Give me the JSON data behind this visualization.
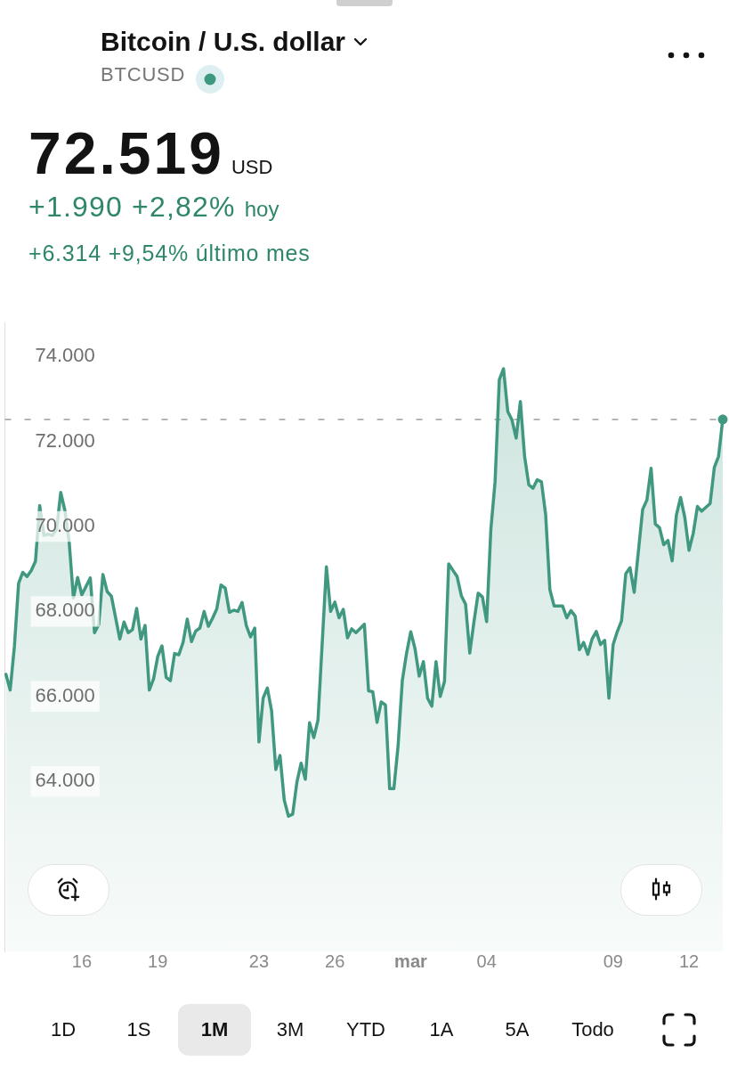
{
  "chart_data": {
    "type": "area",
    "title": "Bitcoin / U.S. dollar",
    "subtitle": "BTCUSD",
    "annotations": [
      "72.519",
      "USD",
      "+1.990 +2,82%",
      "hoy",
      "+6.314 +9,54% último mes",
      "1D",
      "1S",
      "1M",
      "3M",
      "YTD",
      "1A",
      "5A",
      "Todo"
    ],
    "xlim": [
      "--02-12T23:00",
      "--03-13T08:00"
    ],
    "xticks": [
      {
        "value": "--02-16",
        "label": "16"
      },
      {
        "value": "--02-19",
        "label": "19"
      },
      {
        "value": "--02-23",
        "label": "23"
      },
      {
        "value": "--02-26",
        "label": "26"
      },
      {
        "value": "--03-01",
        "label": "mar"
      },
      {
        "value": "--03-04",
        "label": "04"
      },
      {
        "value": "--03-09",
        "label": "09"
      },
      {
        "value": "--03-12",
        "label": "12"
      }
    ],
    "ylim": [
      60000,
      74800
    ],
    "yticks": [
      {
        "value": 64000,
        "label": "64.000"
      },
      {
        "value": 66000,
        "label": "66.000"
      },
      {
        "value": 68000,
        "label": "68.000"
      },
      {
        "value": 70000,
        "label": "70.000"
      },
      {
        "value": 72000,
        "label": "72.000"
      },
      {
        "value": 74000,
        "label": "74.000"
      }
    ],
    "ref_lines": [
      {
        "axis": "y",
        "value": 72519,
        "color": "#8a8a8a",
        "line_style": "dashed"
      }
    ],
    "series": [
      {
        "color": "#409880",
        "x": [
          "--02-13T00:00",
          "--02-13T04:00",
          "--02-13T08:00",
          "--02-13T12:00",
          "--02-13T16:00",
          "--02-13T20:00",
          "--02-14T00:00",
          "--02-14T04:00",
          "--02-14T08:00",
          "--02-14T12:00",
          "--02-14T16:00",
          "--02-14T20:00",
          "--02-15T00:00",
          "--02-15T04:00",
          "--02-15T08:00",
          "--02-15T12:00",
          "--02-15T16:00",
          "--02-15T20:00",
          "--02-16T00:00",
          "--02-16T08:00",
          "--02-16T12:00",
          "--02-16T16:00",
          "--02-16T20:00",
          "--02-17T00:00",
          "--02-17T04:00",
          "--02-17T12:00",
          "--02-17T16:00",
          "--02-17T20:00",
          "--02-18T00:00",
          "--02-18T04:00",
          "--02-18T08:00",
          "--02-18T12:00",
          "--02-18T16:00",
          "--02-18T20:00",
          "--02-19T00:00",
          "--02-19T04:00",
          "--02-19T08:00",
          "--02-19T12:00",
          "--02-19T16:00",
          "--02-19T20:00",
          "--02-20T00:00",
          "--02-20T04:00",
          "--02-20T08:00",
          "--02-20T12:00",
          "--02-20T16:00",
          "--02-20T20:00",
          "--02-21T00:00",
          "--02-21T04:00",
          "--02-21T08:00",
          "--02-21T12:00",
          "--02-21T16:00",
          "--02-21T20:00",
          "--02-22T00:00",
          "--02-22T04:00",
          "--02-22T08:00",
          "--02-22T12:00",
          "--02-22T16:00",
          "--02-22T20:00",
          "--02-23T00:00",
          "--02-23T04:00",
          "--02-23T08:00",
          "--02-23T12:00",
          "--02-23T16:00",
          "--02-23T20:00",
          "--02-24T00:00",
          "--02-24T04:00",
          "--02-24T08:00",
          "--02-24T12:00",
          "--02-24T16:00",
          "--02-24T20:00",
          "--02-25T00:00",
          "--02-25T04:00",
          "--02-25T08:00",
          "--02-25T16:00",
          "--02-25T20:00",
          "--02-26T00:00",
          "--02-26T04:00",
          "--02-26T08:00",
          "--02-26T12:00",
          "--02-26T16:00",
          "--02-26T20:00",
          "--02-27T04:00",
          "--02-27T08:00",
          "--02-27T12:00",
          "--02-27T16:00",
          "--02-27T20:00",
          "--02-28T00:00",
          "--02-28T04:00",
          "--02-28T08:00",
          "--02-28T12:00",
          "--02-28T16:00",
          "--02-28T20:00",
          "--03-01T00:00",
          "--03-01T04:00",
          "--03-01T08:00",
          "--03-01T12:00",
          "--03-01T16:00",
          "--03-01T20:00",
          "--03-02T00:00",
          "--03-02T04:00",
          "--03-02T08:00",
          "--03-02T12:00",
          "--03-02T16:00",
          "--03-02T20:00",
          "--03-03T00:00",
          "--03-03T04:00",
          "--03-03T08:00",
          "--03-03T12:00",
          "--03-03T16:00",
          "--03-03T20:00",
          "--03-04T00:00",
          "--03-04T04:00",
          "--03-04T08:00",
          "--03-04T12:00",
          "--03-04T16:00",
          "--03-04T20:00",
          "--03-05T00:00",
          "--03-05T04:00",
          "--03-05T08:00",
          "--03-05T12:00",
          "--03-05T16:00",
          "--03-05T20:00",
          "--03-06T00:00",
          "--03-06T04:00",
          "--03-06T08:00",
          "--03-06T12:00",
          "--03-06T16:00",
          "--03-07T00:00",
          "--03-07T04:00",
          "--03-07T08:00",
          "--03-07T12:00",
          "--03-07T16:00",
          "--03-07T20:00",
          "--03-08T00:00",
          "--03-08T04:00",
          "--03-08T08:00",
          "--03-08T12:00",
          "--03-08T16:00",
          "--03-08T20:00",
          "--03-09T00:00",
          "--03-09T04:00",
          "--03-09T08:00",
          "--03-09T12:00",
          "--03-09T16:00",
          "--03-09T20:00",
          "--03-10T04:00",
          "--03-10T08:00",
          "--03-10T12:00",
          "--03-10T16:00",
          "--03-10T20:00",
          "--03-11T00:00",
          "--03-11T04:00",
          "--03-11T08:00",
          "--03-11T12:00",
          "--03-11T16:00",
          "--03-11T20:00",
          "--03-12T00:00",
          "--03-12T04:00",
          "--03-12T08:00",
          "--03-12T12:00",
          "--03-12T20:00",
          "--03-13T00:00",
          "--03-13T04:00",
          "--03-13T08:00"
        ],
        "values": [
          66520,
          66150,
          67170,
          68660,
          68920,
          68820,
          68960,
          69180,
          70490,
          69790,
          69820,
          69790,
          69930,
          70800,
          70370,
          69630,
          68320,
          68800,
          68390,
          68790,
          67500,
          67690,
          68870,
          68470,
          68360,
          67350,
          67750,
          67500,
          67570,
          68070,
          67350,
          67670,
          66150,
          66410,
          66940,
          67190,
          66450,
          66370,
          67010,
          66980,
          67270,
          67820,
          67290,
          67540,
          67610,
          68000,
          67650,
          67840,
          68060,
          68620,
          68550,
          67980,
          68030,
          68000,
          68210,
          67670,
          67400,
          67610,
          64930,
          65960,
          66200,
          65660,
          64280,
          64610,
          63560,
          63180,
          63230,
          63980,
          64430,
          64050,
          65380,
          65030,
          65440,
          69050,
          68000,
          68220,
          67850,
          68050,
          67380,
          67590,
          67500,
          67700,
          66130,
          66110,
          65390,
          65870,
          65800,
          63830,
          63830,
          64840,
          66370,
          67010,
          67520,
          67130,
          66480,
          66820,
          65960,
          65770,
          66820,
          66000,
          66350,
          69120,
          68970,
          68820,
          68370,
          68170,
          67020,
          67760,
          68430,
          68340,
          67760,
          69930,
          71050,
          73450,
          73710,
          72710,
          72510,
          72080,
          72940,
          71650,
          70980,
          70900,
          71100,
          71050,
          70270,
          68510,
          68130,
          68130,
          67850,
          68020,
          67890,
          67100,
          67270,
          66990,
          67350,
          67530,
          67220,
          67320,
          65960,
          67220,
          67530,
          67780,
          68890,
          69030,
          68450,
          70400,
          70620,
          71370,
          70060,
          69970,
          69570,
          69670,
          69190,
          70270,
          70680,
          70210,
          69440,
          69840,
          70470,
          70360,
          70540,
          71390,
          71650,
          72519
        ]
      },
      {
        "type": "scatter",
        "marker": "circle",
        "color": "#409880",
        "x": [
          "--03-13T08:00"
        ],
        "values": [
          72519
        ]
      }
    ]
  }
}
